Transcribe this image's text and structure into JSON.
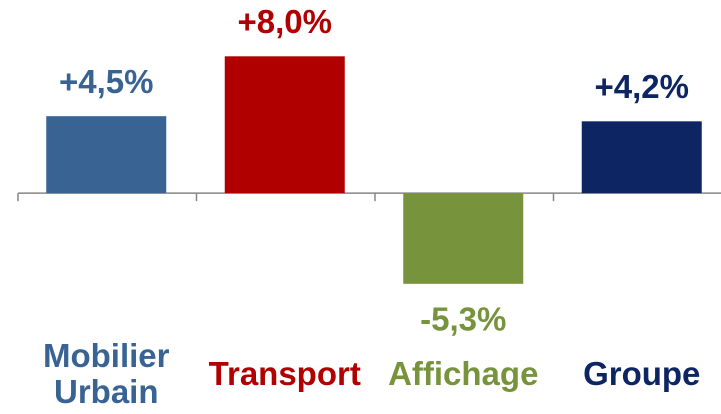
{
  "chart_data": {
    "type": "bar",
    "categories": [
      "Mobilier Urbain",
      "Transport",
      "Affichage",
      "Groupe"
    ],
    "values": [
      4.5,
      8.0,
      -5.3,
      4.2
    ],
    "value_labels": [
      "+4,5%",
      "+8,0%",
      "-5,3%",
      "+4,2%"
    ],
    "colors": [
      "#386393",
      "#b00000",
      "#77933c",
      "#0d2562"
    ],
    "ylim": [
      -8,
      11
    ]
  }
}
